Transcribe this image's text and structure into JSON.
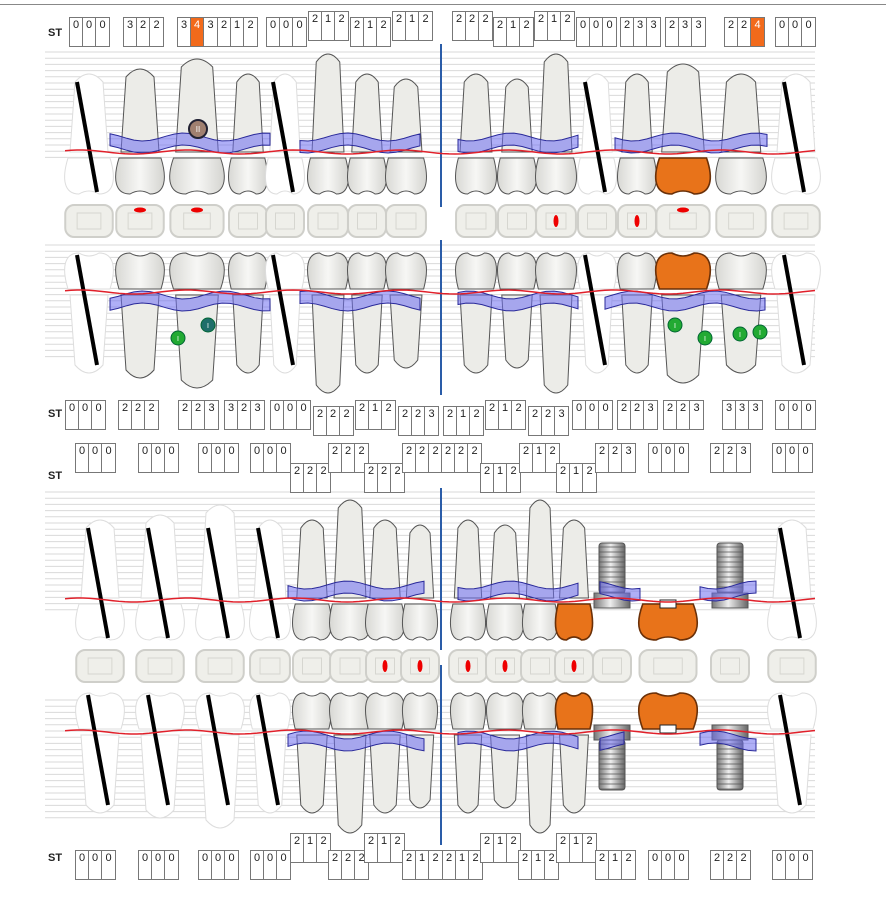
{
  "label_st": "ST",
  "colors": {
    "highlight": "#f26a1b",
    "gum_band": "#7b7bf0",
    "gum_line": "#e0202a",
    "crown": "#e8731a",
    "furcation": "#22aa33",
    "midline": "#2a5ca8"
  },
  "probing_rows": [
    {
      "boxes": [
        {
          "values": [
            "0",
            "0",
            "0"
          ]
        },
        {
          "values": [
            "3",
            "2",
            "2"
          ]
        },
        {
          "values": [
            "3",
            "4",
            "3"
          ],
          "highlight": 1
        },
        {
          "values": [
            "2",
            "1",
            "2"
          ]
        },
        {
          "values": [
            "0",
            "0",
            "0"
          ]
        },
        {
          "values": [
            "2",
            "1",
            "2"
          ]
        },
        {
          "values": [
            "2",
            "1",
            "2"
          ]
        },
        {
          "values": [
            "2",
            "1",
            "2"
          ]
        },
        {
          "values": [
            "2",
            "2",
            "2"
          ]
        },
        {
          "values": [
            "2",
            "1",
            "2"
          ]
        },
        {
          "values": [
            "2",
            "1",
            "2"
          ]
        },
        {
          "values": [
            "0",
            "0",
            "0"
          ]
        },
        {
          "values": [
            "2",
            "3",
            "3"
          ]
        },
        {
          "values": [
            "2",
            "3",
            "3"
          ]
        },
        {
          "values": [
            "2",
            "2",
            "4"
          ],
          "highlight": 2
        },
        {
          "values": [
            "0",
            "0",
            "0"
          ]
        }
      ]
    },
    {
      "boxes": [
        {
          "values": [
            "0",
            "0",
            "0"
          ]
        },
        {
          "values": [
            "2",
            "2",
            "2"
          ]
        },
        {
          "values": [
            "2",
            "2",
            "3"
          ]
        },
        {
          "values": [
            "3",
            "2",
            "3"
          ]
        },
        {
          "values": [
            "0",
            "0",
            "0"
          ]
        },
        {
          "values": [
            "2",
            "2",
            "2"
          ]
        },
        {
          "values": [
            "2",
            "1",
            "2"
          ]
        },
        {
          "values": [
            "2",
            "2",
            "3"
          ]
        },
        {
          "values": [
            "2",
            "1",
            "2"
          ]
        },
        {
          "values": [
            "2",
            "1",
            "2"
          ]
        },
        {
          "values": [
            "2",
            "2",
            "3"
          ]
        },
        {
          "values": [
            "0",
            "0",
            "0"
          ]
        },
        {
          "values": [
            "2",
            "2",
            "3"
          ]
        },
        {
          "values": [
            "2",
            "2",
            "3"
          ]
        },
        {
          "values": [
            "3",
            "3",
            "3"
          ]
        },
        {
          "values": [
            "0",
            "0",
            "0"
          ]
        }
      ]
    },
    {
      "boxes": [
        {
          "values": [
            "0",
            "0",
            "0"
          ]
        },
        {
          "values": [
            "0",
            "0",
            "0"
          ]
        },
        {
          "values": [
            "0",
            "0",
            "0"
          ]
        },
        {
          "values": [
            "0",
            "0",
            "0"
          ]
        },
        {
          "values": [
            "2",
            "2",
            "2"
          ]
        },
        {
          "values": [
            "2",
            "2",
            "2"
          ]
        },
        {
          "values": [
            "2",
            "2",
            "2"
          ]
        },
        {
          "values": [
            "2",
            "2",
            "2"
          ]
        },
        {
          "values": [
            "2",
            "2",
            "2"
          ]
        },
        {
          "values": [
            "2",
            "1",
            "2"
          ]
        },
        {
          "values": [
            "2",
            "1",
            "2"
          ]
        },
        {
          "values": [
            "2",
            "1",
            "2"
          ]
        },
        {
          "values": [
            "2",
            "2",
            "3"
          ]
        },
        {
          "values": [
            "0",
            "0",
            "0"
          ]
        },
        {
          "values": [
            "2",
            "2",
            "3"
          ]
        },
        {
          "values": [
            "0",
            "0",
            "0"
          ]
        }
      ]
    },
    {
      "boxes": [
        {
          "values": [
            "0",
            "0",
            "0"
          ]
        },
        {
          "values": [
            "0",
            "0",
            "0"
          ]
        },
        {
          "values": [
            "0",
            "0",
            "0"
          ]
        },
        {
          "values": [
            "0",
            "0",
            "0"
          ]
        },
        {
          "values": [
            "2",
            "1",
            "2"
          ]
        },
        {
          "values": [
            "2",
            "2",
            "2"
          ]
        },
        {
          "values": [
            "2",
            "1",
            "2"
          ]
        },
        {
          "values": [
            "2",
            "1",
            "2"
          ]
        },
        {
          "values": [
            "2",
            "1",
            "2"
          ]
        },
        {
          "values": [
            "2",
            "1",
            "2"
          ]
        },
        {
          "values": [
            "2",
            "1",
            "2"
          ]
        },
        {
          "values": [
            "2",
            "1",
            "2"
          ]
        },
        {
          "values": [
            "2",
            "1",
            "2"
          ]
        },
        {
          "values": [
            "0",
            "0",
            "0"
          ]
        },
        {
          "values": [
            "2",
            "2",
            "2"
          ]
        },
        {
          "values": [
            "0",
            "0",
            "0"
          ]
        }
      ]
    }
  ],
  "teeth": {
    "buccal_upper": [
      "missing",
      "present",
      "present",
      "present",
      "missing",
      "present",
      "present",
      "present",
      "present",
      "present",
      "present",
      "missing",
      "present",
      "crown",
      "present",
      "missing"
    ],
    "buccal_lower": [
      "missing",
      "present",
      "present",
      "present",
      "missing",
      "present",
      "present",
      "present",
      "present",
      "present",
      "present",
      "missing",
      "present",
      "crown",
      "present",
      "missing"
    ],
    "lingual_upper": [
      "missing",
      "missing",
      "missing",
      "missing",
      "present",
      "present",
      "present",
      "present",
      "present",
      "present",
      "present",
      "crown",
      "implant",
      "pontic",
      "implant",
      "missing"
    ],
    "lingual_lower": [
      "missing",
      "missing",
      "missing",
      "missing",
      "present",
      "present",
      "present",
      "present",
      "present",
      "present",
      "present",
      "crown",
      "implant",
      "pontic",
      "implant",
      "missing"
    ]
  },
  "furcation_badge": "II",
  "furcation_markers": [
    "I",
    "I",
    "I",
    "I",
    "I",
    "I"
  ]
}
